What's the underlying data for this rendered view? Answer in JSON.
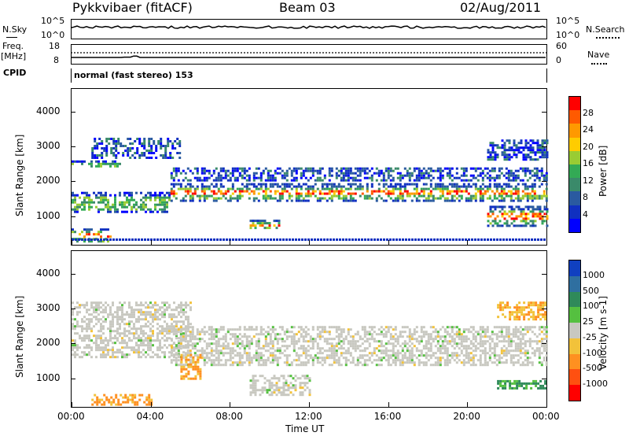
{
  "header": {
    "radar": "Pykkvibaer (fitACF)",
    "beam": "Beam 03",
    "date": "02/Aug/2011"
  },
  "noise_panel": {
    "left_label": "N.Sky",
    "right_label": "N.Search",
    "left_ticks": [
      "10^5",
      "10^0"
    ],
    "right_ticks": [
      "10^5",
      "10^0"
    ]
  },
  "freq_panel": {
    "left_label_top": "Freq.",
    "left_label_unit": "[MHz]",
    "right_label": "Nave",
    "left_ticks": [
      "18",
      "8"
    ],
    "right_ticks": [
      "60",
      "0"
    ]
  },
  "cpid": {
    "label": "CPID",
    "text": "normal (fast stereo) 153"
  },
  "chart_data": [
    {
      "type": "heatmap",
      "name": "power",
      "ylabel": "Slant Range [km]",
      "ylim": [
        180,
        4650
      ],
      "yticks": [
        "4000",
        "3000",
        "2000",
        "1000"
      ],
      "yticks_values": [
        4000,
        3000,
        2000,
        1000
      ],
      "colorbar": {
        "label": "Power [dB]",
        "ticks": [
          "28",
          "24",
          "20",
          "16",
          "12",
          "8",
          "4"
        ],
        "colors": [
          "#ff0000",
          "#ff5a00",
          "#ff9900",
          "#ffcc00",
          "#99cc33",
          "#33aa55",
          "#3a8a6a",
          "#2a5aa0",
          "#1030c0",
          "#0000ff"
        ]
      },
      "bands": [
        {
          "t0": 0,
          "t1": 2.5,
          "r0": 2400,
          "r1": 2600,
          "level": "mid"
        },
        {
          "t0": 1.0,
          "t1": 5.5,
          "r0": 2700,
          "r1": 3250,
          "level": "low"
        },
        {
          "t0": 0,
          "t1": 5.0,
          "r0": 1100,
          "r1": 1700,
          "level": "mid"
        },
        {
          "t0": 0,
          "t1": 2.0,
          "r0": 250,
          "r1": 650,
          "level": "high"
        },
        {
          "t0": 5.0,
          "t1": 24,
          "r0": 1450,
          "r1": 1950,
          "level": "high"
        },
        {
          "t0": 9.0,
          "t1": 10.5,
          "r0": 650,
          "r1": 900,
          "level": "high"
        },
        {
          "t0": 21.0,
          "t1": 24,
          "r0": 700,
          "r1": 1300,
          "level": "high"
        },
        {
          "t0": 21.0,
          "t1": 24,
          "r0": 2600,
          "r1": 3200,
          "level": "low"
        },
        {
          "t0": 5.0,
          "t1": 24,
          "r0": 2000,
          "r1": 2400,
          "level": "low"
        }
      ]
    },
    {
      "type": "heatmap",
      "name": "velocity",
      "ylabel": "Slant Range [km]",
      "ylim": [
        180,
        4650
      ],
      "yticks": [
        "4000",
        "3000",
        "2000",
        "1000"
      ],
      "yticks_values": [
        4000,
        3000,
        2000,
        1000
      ],
      "xlabel": "Time UT",
      "xticks": [
        "00:00",
        "04:00",
        "08:00",
        "12:00",
        "16:00",
        "20:00",
        "00:00"
      ],
      "xticks_values": [
        0,
        4,
        8,
        12,
        16,
        20,
        24
      ],
      "xlim": [
        0,
        24
      ],
      "colorbar": {
        "label": "Velocity [m s-1]",
        "ticks": [
          "1000",
          "500",
          "100",
          "25",
          "-25",
          "-100",
          "-500",
          "-1000"
        ],
        "colors": [
          "#1040c0",
          "#2f6fa0",
          "#2f8a5a",
          "#55c040",
          "#c8c8c0",
          "#f2c23a",
          "#ff9020",
          "#ff5010",
          "#ff0000"
        ]
      },
      "bands": [
        {
          "t0": 0,
          "t1": 6.0,
          "r0": 1600,
          "r1": 3200,
          "level": "gray"
        },
        {
          "t0": 5.0,
          "t1": 24,
          "r0": 1400,
          "r1": 2500,
          "level": "gray"
        },
        {
          "t0": 5.5,
          "t1": 6.5,
          "r0": 1000,
          "r1": 1700,
          "level": "orange"
        },
        {
          "t0": 1.0,
          "t1": 4.0,
          "r0": 250,
          "r1": 550,
          "level": "orange"
        },
        {
          "t0": 21.5,
          "t1": 24,
          "r0": 2700,
          "r1": 3200,
          "level": "yellow"
        },
        {
          "t0": 21.5,
          "t1": 24,
          "r0": 700,
          "r1": 950,
          "level": "green"
        },
        {
          "t0": 9.0,
          "t1": 12.0,
          "r0": 500,
          "r1": 1100,
          "level": "gray"
        }
      ]
    }
  ],
  "axes": {
    "time_label": "Time UT"
  }
}
